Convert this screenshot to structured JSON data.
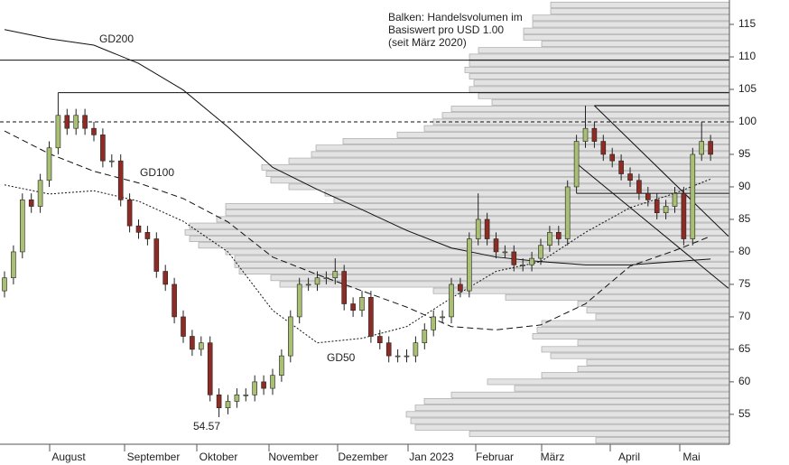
{
  "chart_data": {
    "type": "candlestick",
    "ylim": [
      50.4,
      118.75
    ],
    "yticks": [
      55,
      60,
      65,
      70,
      75,
      80,
      85,
      90,
      95,
      100,
      105,
      110,
      115
    ],
    "months": [
      "August",
      "September",
      "Oktober",
      "November",
      "Dezember",
      "Jan 2023",
      "Februar",
      "März",
      "April",
      "Mai"
    ],
    "note_lines": [
      "Balken: Handelsvolumen im",
      "Basiswert pro USD 1.00",
      "(seit März 2020)"
    ],
    "up_color": "#a9bf74",
    "down_color": "#8e2b24",
    "open": [
      74,
      76,
      80,
      88,
      87,
      91,
      96,
      101,
      99,
      101,
      99,
      98,
      94,
      94,
      88,
      84,
      83,
      82,
      77,
      75,
      70,
      67,
      65,
      66,
      58,
      56,
      57,
      58,
      58,
      60,
      59,
      61,
      64,
      70,
      75,
      75,
      76,
      76,
      77,
      72,
      71,
      73,
      67,
      66,
      64,
      64,
      64,
      66,
      68,
      70,
      70,
      75,
      74,
      82,
      85,
      82,
      80,
      80,
      78,
      78,
      79,
      81,
      83,
      82,
      90,
      97,
      99,
      97,
      95,
      94,
      92,
      91,
      89,
      88,
      86,
      87,
      89,
      82,
      95,
      97
    ],
    "high": [
      77,
      81,
      89,
      89,
      92,
      97,
      104.5,
      102,
      102,
      102,
      100,
      99,
      95,
      95,
      89,
      85,
      84,
      83,
      78,
      76,
      71,
      68,
      67,
      67,
      59,
      58,
      59,
      59,
      61,
      61,
      62,
      65,
      71,
      76,
      76,
      77,
      77,
      79,
      78,
      73,
      74,
      74,
      68,
      67,
      65,
      65,
      67,
      69,
      71,
      71,
      76,
      76,
      83,
      89,
      86,
      83,
      81,
      81,
      79,
      80,
      82,
      84,
      84,
      91,
      98,
      102.5,
      100,
      98,
      96,
      95,
      93,
      92,
      90,
      89,
      88,
      90,
      90,
      96,
      100,
      98
    ],
    "low": [
      73,
      75,
      79,
      86,
      86,
      90,
      95,
      98,
      98,
      98,
      97,
      93,
      93,
      87,
      83,
      82,
      81,
      76,
      74,
      69,
      66,
      64,
      64,
      57,
      54.57,
      55,
      56,
      57,
      57,
      58,
      58,
      60,
      63,
      69,
      74,
      74,
      75,
      75,
      71,
      70,
      70,
      66,
      65,
      63,
      63,
      63,
      63,
      65,
      67,
      69,
      69,
      73,
      73,
      81,
      81,
      79,
      79,
      77,
      77,
      77,
      78,
      80,
      81,
      81,
      89,
      96,
      96,
      94,
      93,
      91,
      90,
      88,
      87,
      85,
      85,
      86,
      81,
      81,
      94,
      94
    ],
    "close": [
      76,
      80,
      88,
      87,
      91,
      96,
      101,
      99,
      101,
      99,
      98,
      94,
      94,
      88,
      84,
      83,
      82,
      77,
      75,
      70,
      67,
      65,
      66,
      58,
      56,
      57,
      58,
      58,
      60,
      59,
      61,
      64,
      70,
      75,
      75,
      76,
      76,
      77,
      72,
      71,
      73,
      67,
      66,
      64,
      64,
      64,
      66,
      68,
      70,
      70,
      75,
      74,
      82,
      85,
      82,
      80,
      80,
      78,
      78,
      79,
      81,
      83,
      82,
      90,
      97,
      99,
      97,
      95,
      94,
      92,
      91,
      89,
      88,
      86,
      87,
      89,
      82,
      95,
      97,
      95
    ],
    "moving_averages": [
      {
        "name": "GD200",
        "style": "solid",
        "x": [
          0,
          5,
          10,
          15,
          20,
          25,
          30,
          35,
          40,
          45,
          50,
          55,
          60,
          65,
          70,
          75,
          79
        ],
        "values": [
          114.2,
          112.8,
          111.8,
          109,
          104.9,
          99.2,
          93,
          89.6,
          86.5,
          83.3,
          80.6,
          79.2,
          78.5,
          78,
          78,
          78.5,
          78.9
        ]
      },
      {
        "name": "GD100",
        "style": "dashed",
        "x": [
          0,
          5,
          10,
          15,
          20,
          25,
          30,
          35,
          40,
          45,
          50,
          55,
          60,
          65,
          70,
          75,
          79
        ],
        "values": [
          98.6,
          95.1,
          92.4,
          90.6,
          88.2,
          84.6,
          79.2,
          76.5,
          74,
          71.5,
          68.5,
          68,
          68.75,
          72,
          77.8,
          80.2,
          82.4
        ]
      },
      {
        "name": "GD50",
        "style": "dotted",
        "x": [
          0,
          5,
          10,
          15,
          20,
          25,
          30,
          35,
          40,
          45,
          50,
          55,
          60,
          65,
          70,
          75,
          79
        ],
        "values": [
          90.3,
          88.9,
          89.4,
          87.8,
          84.7,
          80,
          71,
          66,
          66.7,
          68.5,
          72.9,
          77,
          78.5,
          83,
          86.8,
          89,
          91.2
        ]
      }
    ],
    "levels": [
      {
        "value": 109.5,
        "from": 0,
        "style": "solid"
      },
      {
        "value": 104.5,
        "from": 6,
        "style": "solid"
      },
      {
        "value": 102.5,
        "from": 66,
        "style": "solid"
      },
      {
        "value": 100,
        "from": 0,
        "style": "dashed"
      },
      {
        "value": 89,
        "from": 64,
        "style": "solid"
      }
    ],
    "trend_lines": [
      {
        "x": [
          66,
          81
        ],
        "values": [
          102.5,
          82.4
        ]
      },
      {
        "x": [
          64,
          81
        ],
        "values": [
          93.6,
          74.4
        ]
      }
    ],
    "profile": {
      "volume_lim": [
        0,
        808
      ],
      "prices": [
        118,
        117,
        116,
        115,
        114,
        113,
        112,
        111,
        110,
        109,
        108,
        107,
        106,
        105,
        104,
        103,
        102,
        101,
        100,
        99,
        98,
        97,
        96,
        95,
        94,
        93,
        92,
        91,
        90,
        89,
        88,
        87,
        86,
        85,
        84,
        83,
        82,
        81,
        80,
        79,
        78,
        77,
        76,
        75,
        74,
        73,
        72,
        71,
        70,
        69,
        68,
        67,
        66,
        65,
        64,
        63,
        62,
        61,
        60,
        59,
        58,
        57,
        56,
        55,
        54,
        53,
        52,
        51
      ],
      "volumes": [
        198,
        198,
        218,
        218,
        228,
        228,
        208,
        278,
        288,
        288,
        293,
        288,
        283,
        288,
        278,
        263,
        308,
        318,
        328,
        338,
        368,
        428,
        458,
        463,
        488,
        518,
        513,
        508,
        488,
        448,
        438,
        558,
        558,
        568,
        598,
        603,
        598,
        588,
        558,
        548,
        548,
        543,
        508,
        498,
        328,
        248,
        168,
        158,
        148,
        208,
        213,
        218,
        168,
        208,
        198,
        158,
        168,
        208,
        268,
        238,
        308,
        338,
        348,
        358,
        353,
        348,
        288,
        148
      ]
    }
  }
}
